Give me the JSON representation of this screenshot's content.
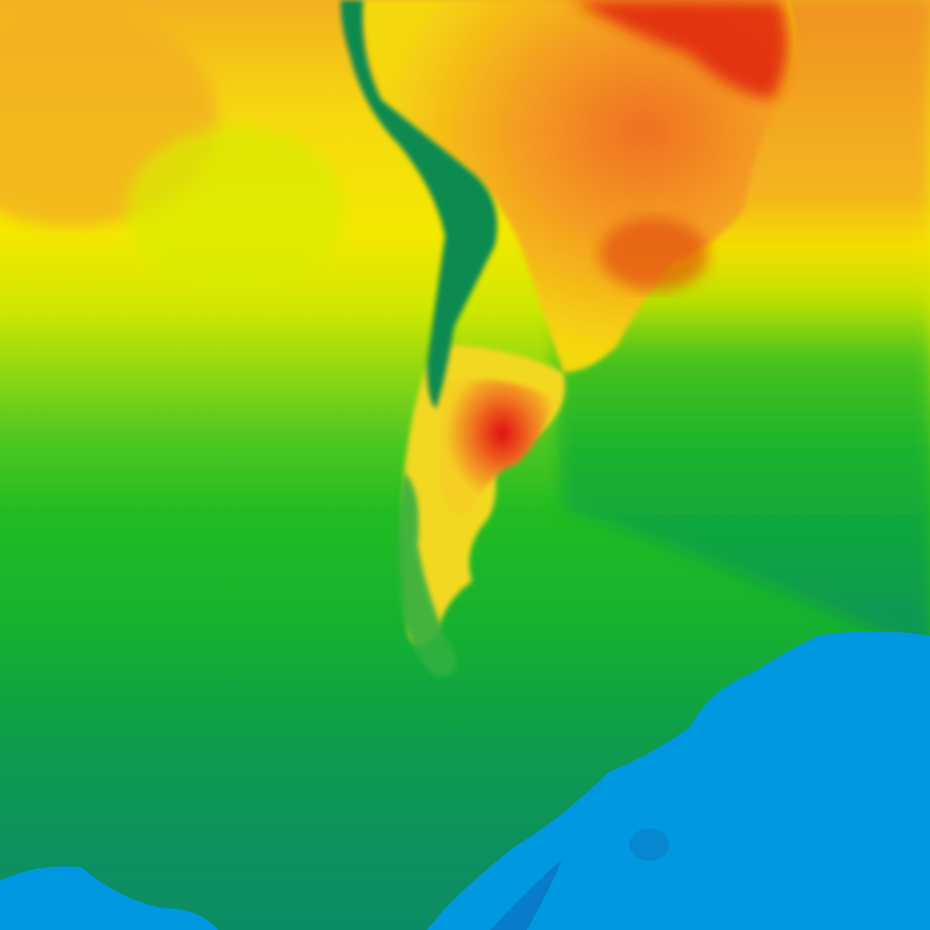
{
  "map": {
    "colors": {
      "hot": "#e01010",
      "warm": "#f08a20",
      "mild": "#f5e400",
      "cool": "#a8e000",
      "cold": "#1cb82a",
      "colder": "#0c9860",
      "ice": "#0098e0",
      "highland": "#0a8a50"
    }
  }
}
